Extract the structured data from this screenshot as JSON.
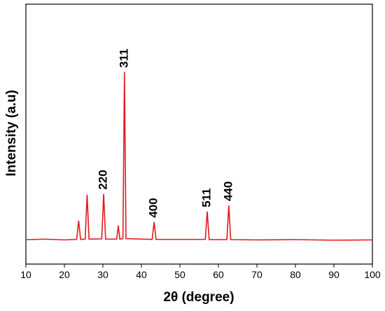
{
  "chart_data": {
    "type": "line",
    "x_label": "2θ (degree)",
    "y_label": "Intensity (a.u)",
    "xlim": [
      10,
      100
    ],
    "xticks": [
      10,
      20,
      30,
      40,
      50,
      60,
      70,
      80,
      90,
      100
    ],
    "ylim": [
      0,
      100
    ],
    "series": [
      {
        "color": "#e3191c",
        "x": [
          10,
          15,
          20,
          23.2,
          23.7,
          24.2,
          25.4,
          25.9,
          26.4,
          29.7,
          30.2,
          30.7,
          33.6,
          34,
          34.4,
          35.2,
          35.6,
          36,
          42.8,
          43.3,
          43.8,
          56.6,
          57.1,
          57.6,
          62.2,
          62.7,
          63.2,
          70,
          80,
          90,
          100
        ],
        "values": [
          9.4,
          9.6,
          9.3,
          9.5,
          16.7,
          9.5,
          9.6,
          26.7,
          9.6,
          9.7,
          27.0,
          9.6,
          9.6,
          14.8,
          9.6,
          9.8,
          73.9,
          9.8,
          9.5,
          16.2,
          9.5,
          9.5,
          20.2,
          9.4,
          9.4,
          22.6,
          9.4,
          9.3,
          9.4,
          9.2,
          9.3
        ]
      }
    ],
    "annotations": [
      {
        "text": "220",
        "x": 30.2,
        "y": 27.0
      },
      {
        "text": "311",
        "x": 35.6,
        "y": 73.9
      },
      {
        "text": "400",
        "x": 43.3,
        "y": 16.2
      },
      {
        "text": "511",
        "x": 57.1,
        "y": 20.2
      },
      {
        "text": "440",
        "x": 62.7,
        "y": 22.6
      }
    ]
  }
}
